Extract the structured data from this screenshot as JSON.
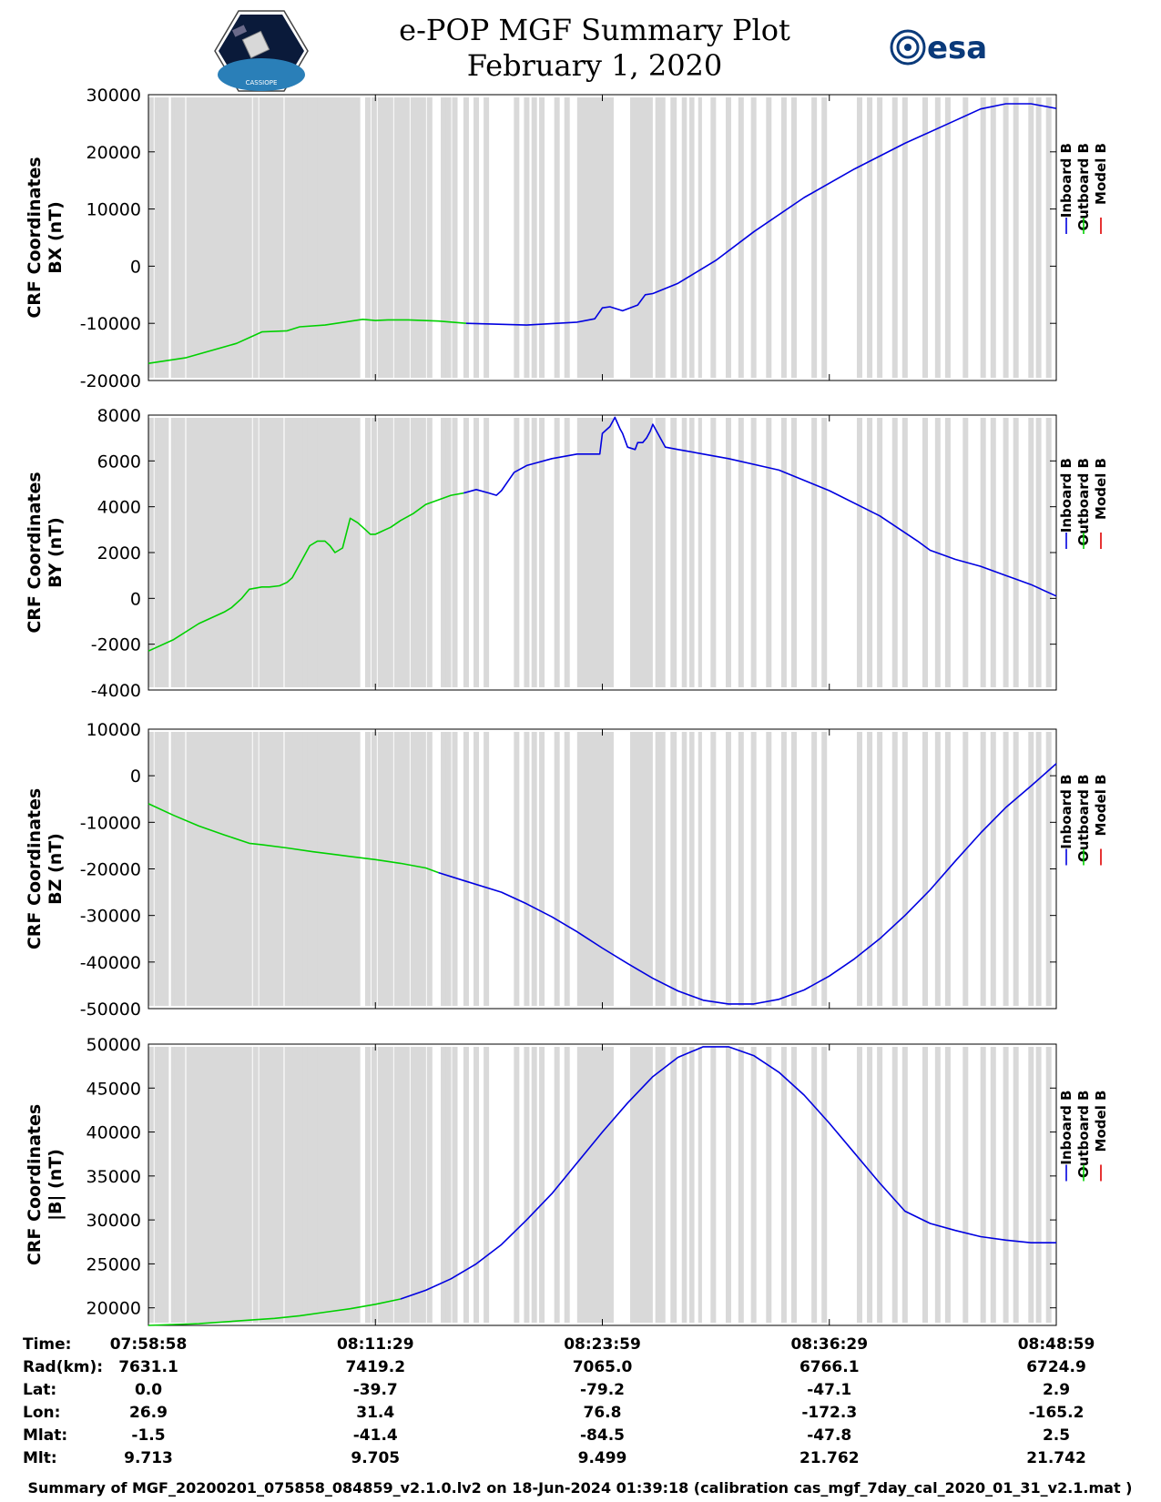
{
  "header": {
    "title_line1": "e-POP MGF Summary Plot",
    "title_line2": "February 1, 2020",
    "left_logo_text": "CASSIOPE",
    "right_logo_text": "esa"
  },
  "colors": {
    "inboard": "#0000e0",
    "outboard": "#00d000",
    "model": "#e00000",
    "gap_shading": "#d9d9d9"
  },
  "chart_data": [
    {
      "type": "line",
      "id": "bx",
      "ylabel_line1": "CRF Coordinates",
      "ylabel_line2": "BX (nT)",
      "ylim": [
        -20000,
        30000
      ],
      "yticks": [
        -20000,
        -10000,
        0,
        10000,
        20000,
        30000
      ],
      "ytick_labels": [
        "-20000",
        "-10000",
        "0",
        "10000",
        "20000",
        "30000"
      ],
      "xlim": [
        0,
        3600
      ],
      "legend": [
        "Inboard B",
        "Outboard B",
        "Model B"
      ],
      "series": [
        {
          "name": "Outboard B",
          "x": [
            0,
            150,
            350,
            450,
            550,
            600,
            700,
            850,
            900,
            950,
            1030,
            1150,
            1260
          ],
          "y": [
            -17000,
            -16000,
            -13500,
            -11500,
            -11300,
            -10600,
            -10300,
            -9300,
            -9500,
            -9400,
            -9400,
            -9600,
            -10000
          ]
        },
        {
          "name": "Inboard B",
          "x": [
            1260,
            1500,
            1700,
            1770,
            1800,
            1830,
            1880,
            1940,
            1970,
            2000,
            2100,
            2250,
            2400,
            2600,
            2800,
            3000,
            3200,
            3300,
            3400,
            3500,
            3600
          ],
          "y": [
            -10000,
            -10300,
            -9800,
            -9200,
            -7300,
            -7100,
            -7800,
            -6800,
            -5000,
            -4800,
            -3000,
            1000,
            6000,
            12000,
            17000,
            21500,
            25500,
            27500,
            28400,
            28400,
            27600
          ]
        }
      ]
    },
    {
      "type": "line",
      "id": "by",
      "ylabel_line1": "CRF Coordinates",
      "ylabel_line2": "BY (nT)",
      "ylim": [
        -4000,
        8000
      ],
      "yticks": [
        -4000,
        -2000,
        0,
        2000,
        4000,
        6000,
        8000
      ],
      "ytick_labels": [
        "-4000",
        "-2000",
        "0",
        "2000",
        "4000",
        "6000",
        "8000"
      ],
      "xlim": [
        0,
        3600
      ],
      "legend": [
        "Inboard B",
        "Outboard B",
        "Model B"
      ],
      "series": [
        {
          "name": "Outboard B",
          "x": [
            0,
            100,
            200,
            300,
            330,
            370,
            400,
            450,
            480,
            520,
            550,
            570,
            600,
            625,
            640,
            670,
            700,
            720,
            740,
            770,
            800,
            830,
            860,
            880,
            900,
            920,
            940,
            960,
            1000,
            1050,
            1100,
            1150,
            1200,
            1250
          ],
          "y": [
            -2300,
            -1800,
            -1100,
            -600,
            -400,
            0,
            400,
            500,
            500,
            550,
            700,
            900,
            1500,
            2000,
            2300,
            2500,
            2500,
            2300,
            2000,
            2200,
            3500,
            3300,
            3000,
            2800,
            2800,
            2900,
            3000,
            3100,
            3400,
            3700,
            4100,
            4300,
            4500,
            4600
          ]
        },
        {
          "name": "Inboard B",
          "x": [
            1250,
            1300,
            1350,
            1380,
            1400,
            1450,
            1500,
            1600,
            1700,
            1790,
            1800,
            1830,
            1850,
            1870,
            1880,
            1900,
            1930,
            1940,
            1960,
            1975,
            1990,
            2000,
            2050,
            2100,
            2200,
            2300,
            2500,
            2700,
            2900,
            3050,
            3100,
            3200,
            3300,
            3400,
            3500,
            3600
          ],
          "y": [
            4600,
            4750,
            4600,
            4500,
            4700,
            5500,
            5800,
            6100,
            6300,
            6300,
            7200,
            7500,
            7900,
            7400,
            7200,
            6600,
            6500,
            6800,
            6800,
            7000,
            7300,
            7600,
            6600,
            6500,
            6300,
            6100,
            5600,
            4700,
            3600,
            2500,
            2100,
            1700,
            1400,
            1000,
            600,
            100
          ]
        }
      ]
    },
    {
      "type": "line",
      "id": "bz",
      "ylabel_line1": "CRF Coordinates",
      "ylabel_line2": "BZ (nT)",
      "ylim": [
        -50000,
        10000
      ],
      "yticks": [
        -50000,
        -40000,
        -30000,
        -20000,
        -10000,
        0,
        10000
      ],
      "ytick_labels": [
        "-50000",
        "-40000",
        "-30000",
        "-20000",
        "-10000",
        "0",
        "10000"
      ],
      "xlim": [
        0,
        3600
      ],
      "legend": [
        "Inboard B",
        "Outboard B",
        "Model B"
      ],
      "series": [
        {
          "name": "Outboard B",
          "x": [
            0,
            100,
            200,
            300,
            400,
            450,
            550,
            650,
            750,
            900,
            1000,
            1100,
            1150
          ],
          "y": [
            -6000,
            -8500,
            -10800,
            -12700,
            -14500,
            -14800,
            -15500,
            -16300,
            -17000,
            -18000,
            -18800,
            -19800,
            -20800
          ]
        },
        {
          "name": "Inboard B",
          "x": [
            1150,
            1250,
            1400,
            1500,
            1600,
            1700,
            1800,
            1900,
            2000,
            2100,
            2200,
            2300,
            2400,
            2500,
            2600,
            2700,
            2800,
            2900,
            3000,
            3100,
            3200,
            3300,
            3400,
            3500,
            3600
          ],
          "y": [
            -20800,
            -22500,
            -25000,
            -27500,
            -30300,
            -33500,
            -37000,
            -40300,
            -43500,
            -46200,
            -48200,
            -49000,
            -49000,
            -48000,
            -46000,
            -43000,
            -39300,
            -35000,
            -30000,
            -24500,
            -18300,
            -12300,
            -6800,
            -2200,
            2600
          ]
        }
      ]
    },
    {
      "type": "line",
      "id": "bmag",
      "ylabel_line1": "CRF Coordinates",
      "ylabel_line2": "|B| (nT)",
      "ylim": [
        18000,
        50000
      ],
      "yticks": [
        20000,
        25000,
        30000,
        35000,
        40000,
        45000,
        50000
      ],
      "ytick_labels": [
        "20000",
        "25000",
        "30000",
        "35000",
        "40000",
        "45000",
        "50000"
      ],
      "xlim": [
        0,
        3600
      ],
      "legend": [
        "Inboard B",
        "Outboard B",
        "Model B"
      ],
      "series": [
        {
          "name": "Outboard B",
          "x": [
            0,
            200,
            400,
            500,
            600,
            700,
            800,
            900,
            1000
          ],
          "y": [
            18000,
            18200,
            18600,
            18800,
            19100,
            19500,
            19900,
            20400,
            21000
          ]
        },
        {
          "name": "Inboard B",
          "x": [
            1000,
            1100,
            1200,
            1300,
            1400,
            1500,
            1600,
            1700,
            1800,
            1900,
            2000,
            2100,
            2200,
            2300,
            2400,
            2500,
            2600,
            2700,
            2800,
            2900,
            3000,
            3100,
            3200,
            3300,
            3400,
            3500,
            3600
          ],
          "y": [
            21000,
            22000,
            23300,
            25000,
            27200,
            30000,
            33000,
            36500,
            40000,
            43300,
            46300,
            48500,
            49700,
            49700,
            48700,
            46800,
            44200,
            41000,
            37600,
            34200,
            31000,
            29600,
            28800,
            28100,
            27700,
            27400,
            27400
          ]
        }
      ]
    }
  ],
  "gaps": {
    "solid_bands": [
      [
        150,
        390
      ],
      [
        540,
        840
      ],
      [
        1700,
        1845
      ],
      [
        1910,
        2000
      ],
      [
        2010,
        2050
      ],
      [
        2070,
        2095
      ],
      [
        2115,
        2135
      ],
      [
        2145,
        2165
      ],
      [
        2180,
        2195
      ]
    ],
    "lines": [
      10,
      35,
      50,
      70,
      100,
      115,
      135,
      165,
      185,
      210,
      230,
      250,
      270,
      285,
      305,
      320,
      335,
      350,
      370,
      400,
      425,
      450,
      470,
      490,
      510,
      525,
      580,
      600,
      640,
      680,
      700,
      730,
      760,
      790,
      810,
      870,
      895,
      920,
      940,
      960,
      985,
      1005,
      1025,
      1050,
      1070,
      1090,
      1115,
      1170,
      1190,
      1215,
      1260,
      1300,
      1340,
      1460,
      1500,
      1530,
      1560,
      1620,
      1660,
      2240,
      2300,
      2350,
      2400,
      2460,
      2520,
      2560,
      2640,
      2680,
      2820,
      2860,
      2900,
      2960,
      3000,
      3080,
      3130,
      3170,
      3240,
      3310,
      3350,
      3400,
      3440,
      3500,
      3530,
      3570
    ]
  },
  "orbit_table": {
    "row_labels": [
      "Time:",
      "Rad(km):",
      "Lat:",
      "Lon:",
      "Mlat:",
      "Mlt:"
    ],
    "columns": [
      [
        "07:58:58",
        "7631.1",
        "0.0",
        "26.9",
        "-1.5",
        "9.713"
      ],
      [
        "08:11:29",
        "7419.2",
        "-39.7",
        "31.4",
        "-41.4",
        "9.705"
      ],
      [
        "08:23:59",
        "7065.0",
        "-79.2",
        "76.8",
        "-84.5",
        "9.499"
      ],
      [
        "08:36:29",
        "6766.1",
        "-47.1",
        "-172.3",
        "-47.8",
        "21.762"
      ],
      [
        "08:48:59",
        "6724.9",
        "2.9",
        "-165.2",
        "2.5",
        "21.742"
      ]
    ]
  },
  "footer": "Summary of MGF_20200201_075858_084859_v2.1.0.lv2 on 18-Jun-2024 01:39:18 (calibration cas_mgf_7day_cal_2020_01_31_v2.1.mat )"
}
